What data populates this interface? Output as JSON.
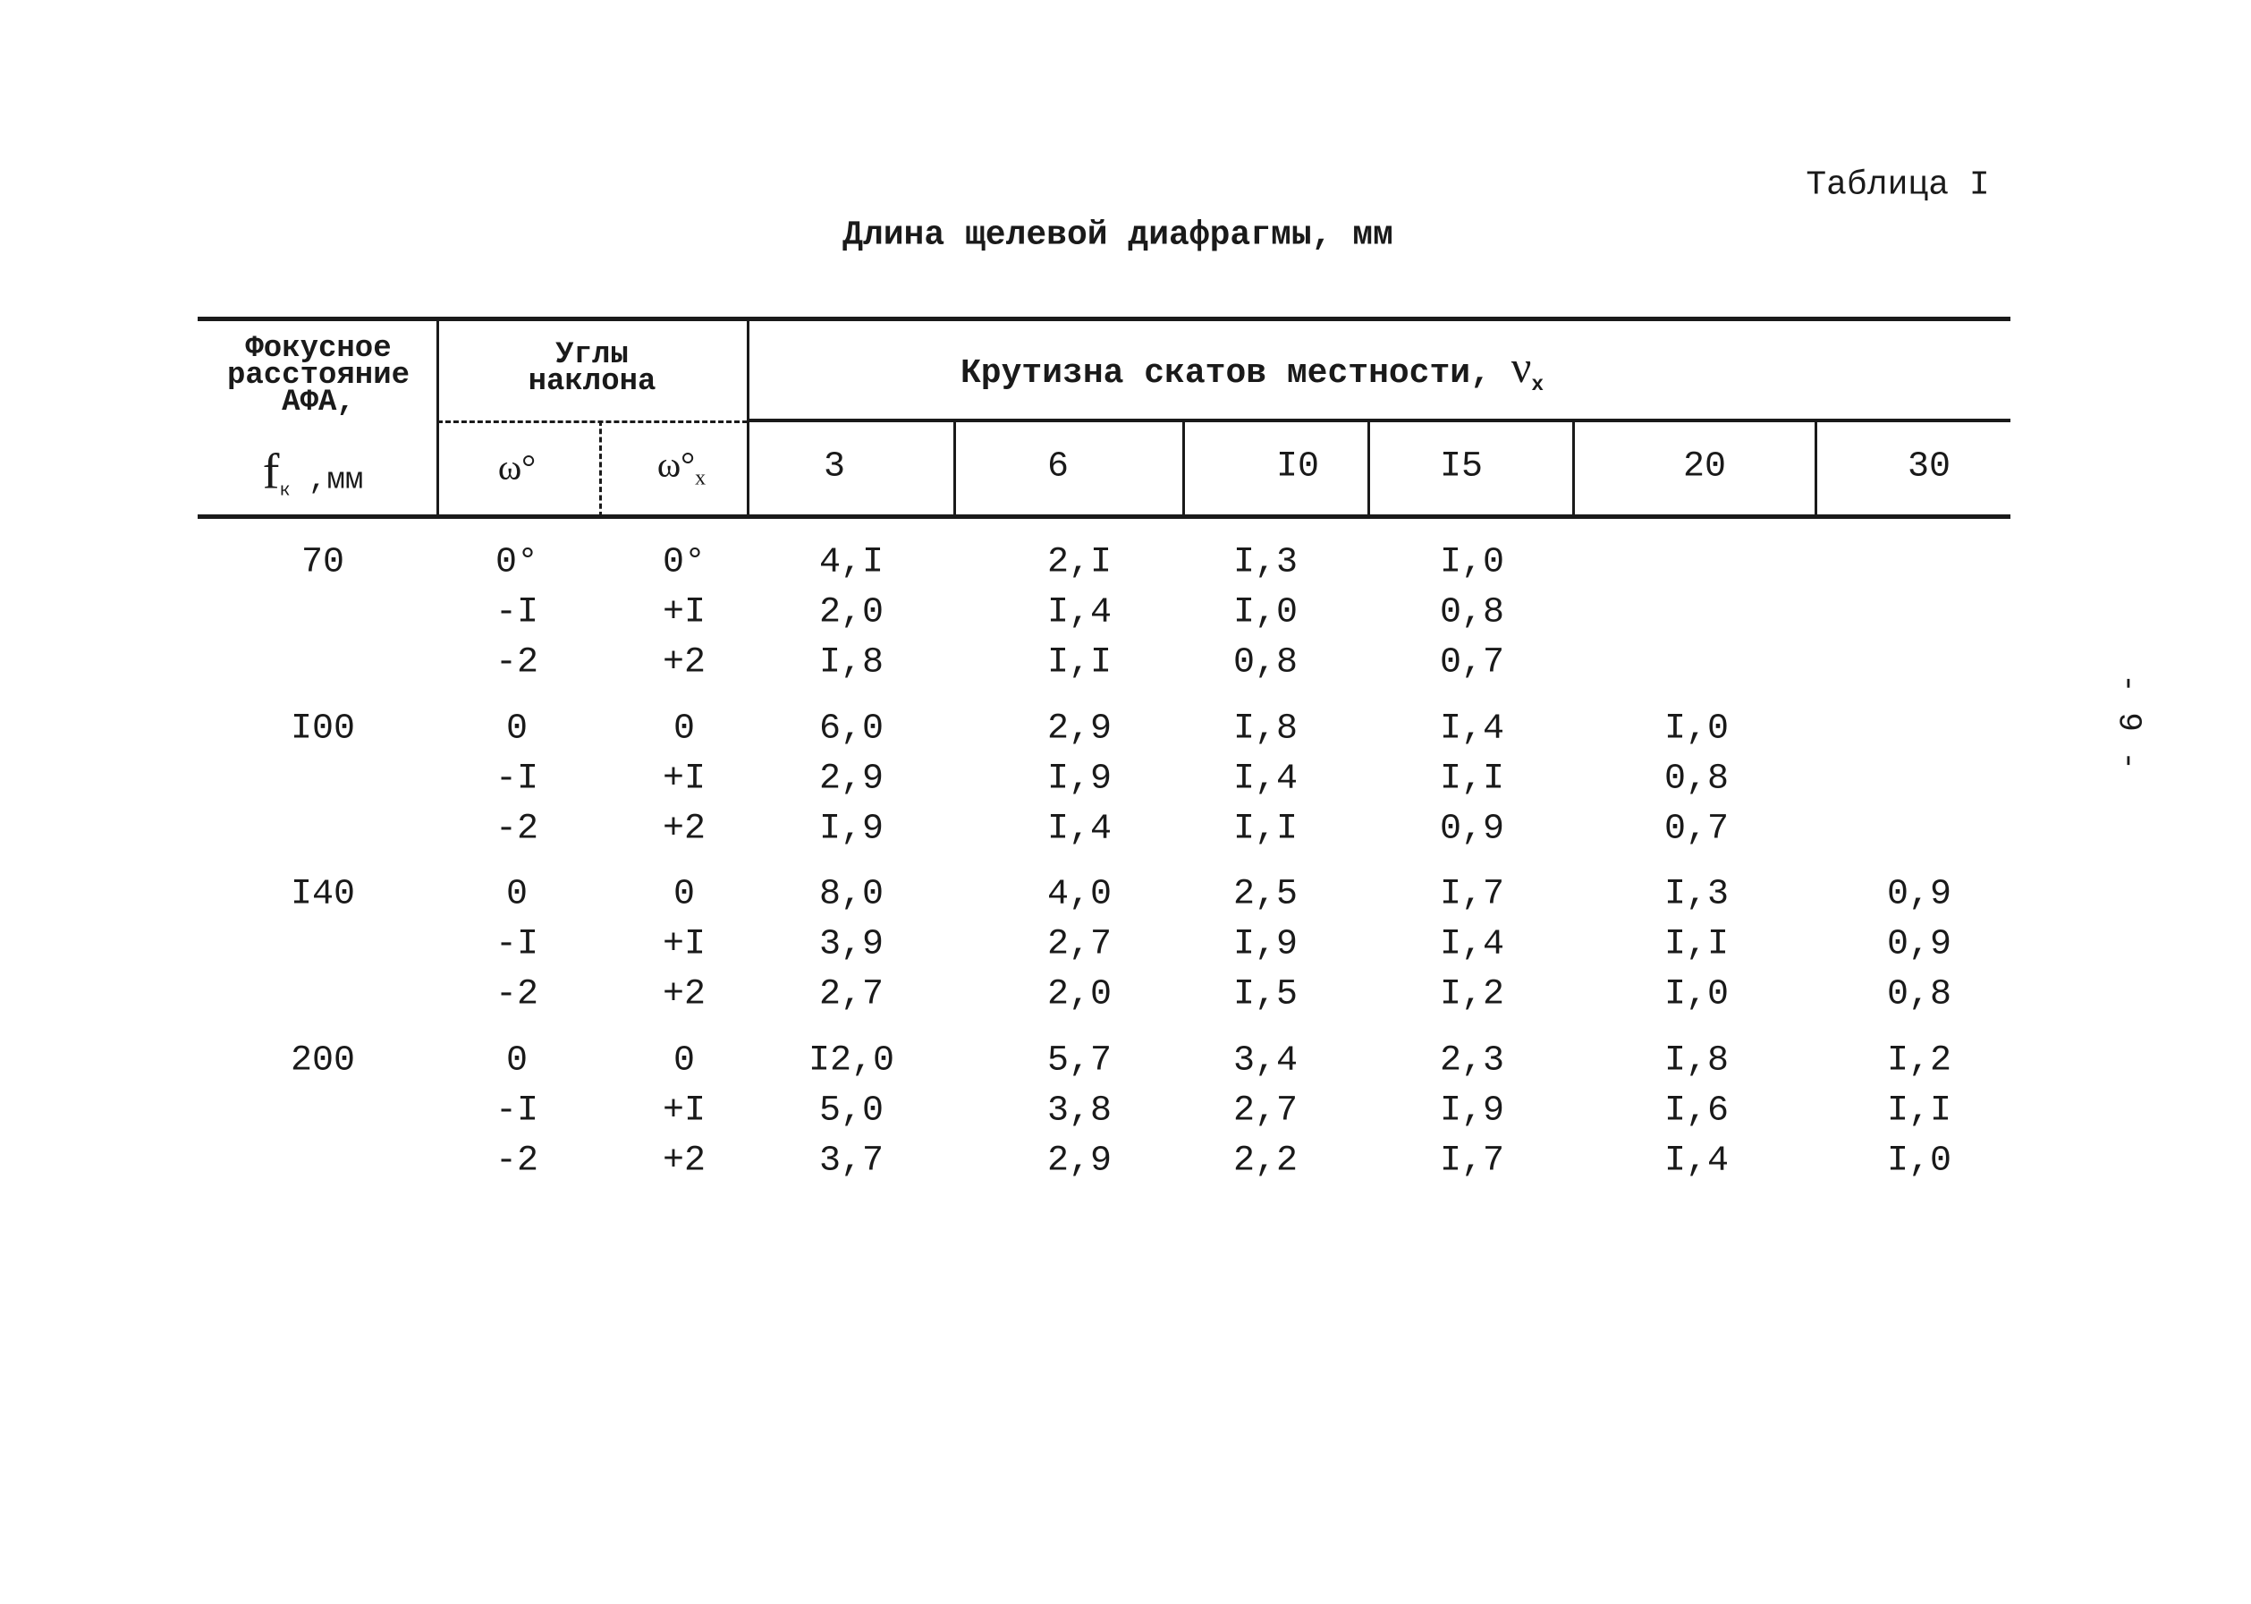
{
  "page_label": "Таблица I",
  "title": "Длина щелевой диафрагмы,  мм",
  "page_number": "- 9 -",
  "table": {
    "header": {
      "focal": [
        "Фокусное",
        "расстояние",
        "АФА,"
      ],
      "focal_symbol": "f",
      "focal_subscript": "к",
      "focal_unit": ",мм",
      "angles": [
        "Углы",
        "наклона"
      ],
      "omega": "ω°",
      "omega_x": "ω°",
      "omega_x_subscript": "x",
      "slope": "Крутизна скатов местности,",
      "slope_symbol": "ν",
      "slope_subscript": "x",
      "columns": [
        "3",
        "6",
        "I0",
        "I5",
        "20",
        "30"
      ]
    },
    "groups": [
      {
        "focal": "70",
        "rows": [
          {
            "omega": "0°",
            "omega_x": "0°",
            "values": [
              "4,I",
              "2,I",
              "I,3",
              "I,0"
            ]
          },
          {
            "omega": "-I",
            "omega_x": "+I",
            "values": [
              "2,0",
              "I,4",
              "I,0",
              "0,8"
            ]
          },
          {
            "omega": "-2",
            "omega_x": "+2",
            "values": [
              "I,8",
              "I,I",
              "0,8",
              "0,7"
            ]
          }
        ]
      },
      {
        "focal": "I00",
        "rows": [
          {
            "omega": "0",
            "omega_x": "0",
            "values": [
              "6,0",
              "2,9",
              "I,8",
              "I,4",
              "I,0"
            ]
          },
          {
            "omega": "-I",
            "omega_x": "+I",
            "values": [
              "2,9",
              "I,9",
              "I,4",
              "I,I",
              "0,8"
            ]
          },
          {
            "omega": "-2",
            "omega_x": "+2",
            "values": [
              "I,9",
              "I,4",
              "I,I",
              "0,9",
              "0,7"
            ]
          }
        ]
      },
      {
        "focal": "I40",
        "rows": [
          {
            "omega": "0",
            "omega_x": "0",
            "values": [
              "8,0",
              "4,0",
              "2,5",
              "I,7",
              "I,3",
              "0,9"
            ]
          },
          {
            "omega": "-I",
            "omega_x": "+I",
            "values": [
              "3,9",
              "2,7",
              "I,9",
              "I,4",
              "I,I",
              "0,9"
            ]
          },
          {
            "omega": "-2",
            "omega_x": "+2",
            "values": [
              "2,7",
              "2,0",
              "I,5",
              "I,2",
              "I,0",
              "0,8"
            ]
          }
        ]
      },
      {
        "focal": "200",
        "rows": [
          {
            "omega": "0",
            "omega_x": "0",
            "values": [
              "I2,0",
              "5,7",
              "3,4",
              "2,3",
              "I,8",
              "I,2"
            ]
          },
          {
            "omega": "-I",
            "omega_x": "+I",
            "values": [
              "5,0",
              "3,8",
              "2,7",
              "I,9",
              "I,6",
              "I,I"
            ]
          },
          {
            "omega": "-2",
            "omega_x": "+2",
            "values": [
              "3,7",
              "2,9",
              "2,2",
              "I,7",
              "I,4",
              "I,0"
            ]
          }
        ]
      }
    ]
  }
}
